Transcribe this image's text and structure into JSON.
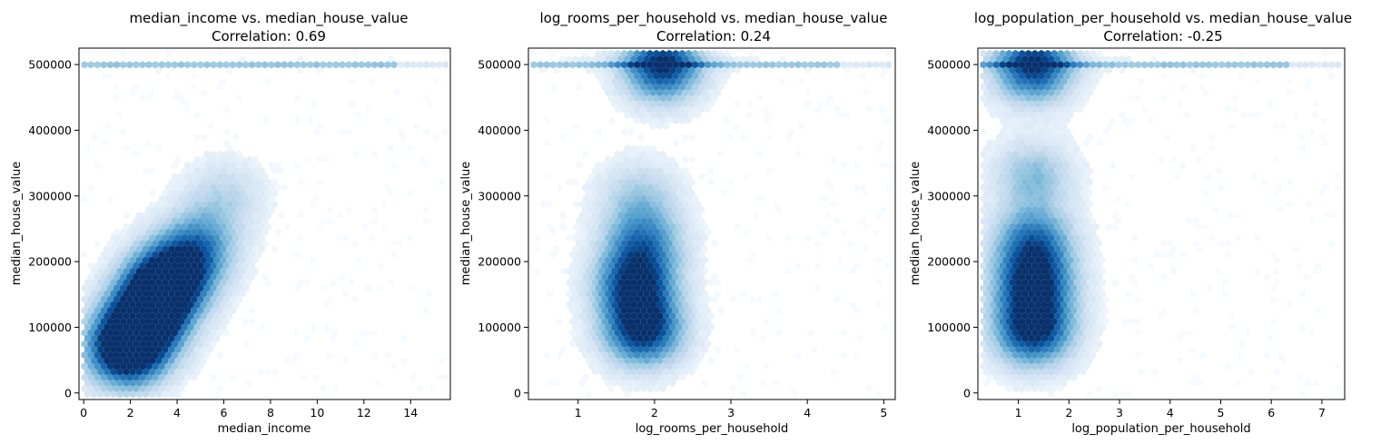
{
  "chart_data": [
    {
      "type": "hexbin",
      "title": "median_income vs. median_house_value",
      "subtitle": "Correlation: 0.69",
      "xlabel": "median_income",
      "ylabel": "median_house_value",
      "xlim": [
        -0.2,
        15.7
      ],
      "ylim": [
        -10000,
        525000
      ],
      "xticks": [
        0,
        2,
        4,
        6,
        8,
        10,
        12,
        14
      ],
      "yticks": [
        0,
        100000,
        200000,
        300000,
        400000,
        500000
      ],
      "colormap": "Blues",
      "cap_value": 500001,
      "density_centers": [
        {
          "x": 1.8,
          "y": 60000,
          "w": 1.0
        },
        {
          "x": 2.3,
          "y": 95000,
          "w": 0.9
        },
        {
          "x": 3.0,
          "y": 130000,
          "w": 0.8
        },
        {
          "x": 3.4,
          "y": 165000,
          "w": 0.85
        },
        {
          "x": 4.2,
          "y": 190000,
          "w": 0.6
        },
        {
          "x": 5.0,
          "y": 230000,
          "w": 0.45
        },
        {
          "x": 6.0,
          "y": 300000,
          "w": 0.25
        }
      ]
    },
    {
      "type": "hexbin",
      "title": "log_rooms_per_household vs. median_house_value",
      "subtitle": "Correlation: 0.24",
      "xlabel": "log_rooms_per_household",
      "ylabel": "median_house_value",
      "xlim": [
        0.35,
        5.15
      ],
      "ylim": [
        -10000,
        525000
      ],
      "xticks": [
        1,
        2,
        3,
        4,
        5
      ],
      "yticks": [
        0,
        100000,
        200000,
        300000,
        400000,
        500000
      ],
      "colormap": "Blues",
      "cap_value": 500001,
      "density_centers": [
        {
          "x": 1.85,
          "y": 95000,
          "w": 1.0
        },
        {
          "x": 1.75,
          "y": 165000,
          "w": 0.9
        },
        {
          "x": 1.85,
          "y": 230000,
          "w": 0.6
        },
        {
          "x": 1.8,
          "y": 300000,
          "w": 0.3
        },
        {
          "x": 2.1,
          "y": 500001,
          "w": 1.0
        }
      ]
    },
    {
      "type": "hexbin",
      "title": "log_population_per_household vs. median_house_value",
      "subtitle": "Correlation: -0.25",
      "xlabel": "log_population_per_household",
      "ylabel": "median_house_value",
      "xlim": [
        0.2,
        7.45
      ],
      "ylim": [
        -10000,
        525000
      ],
      "xticks": [
        1,
        2,
        3,
        4,
        5,
        6,
        7
      ],
      "yticks": [
        0,
        100000,
        200000,
        300000,
        400000,
        500000
      ],
      "colormap": "Blues",
      "cap_value": 500001,
      "density_centers": [
        {
          "x": 1.3,
          "y": 95000,
          "w": 1.0
        },
        {
          "x": 1.3,
          "y": 165000,
          "w": 0.9
        },
        {
          "x": 1.3,
          "y": 230000,
          "w": 0.7
        },
        {
          "x": 1.3,
          "y": 330000,
          "w": 0.4
        },
        {
          "x": 1.3,
          "y": 500001,
          "w": 1.0
        }
      ]
    }
  ]
}
